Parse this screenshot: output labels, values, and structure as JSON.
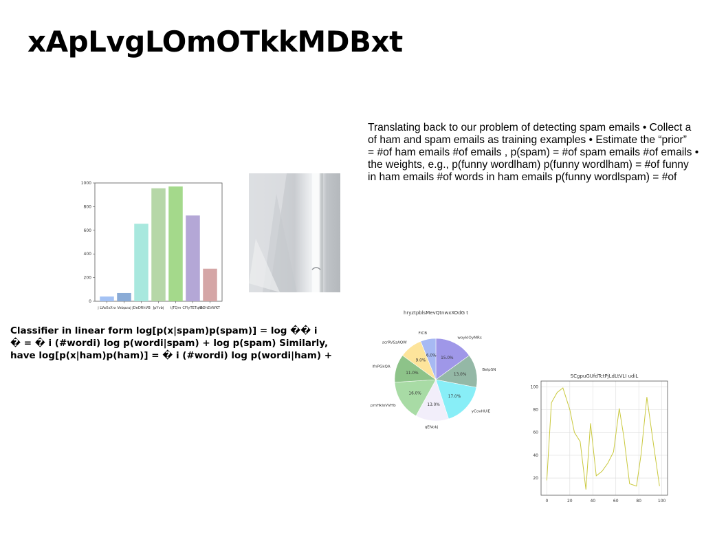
{
  "slide": {
    "title": "xApLvgLOmOTkkMDBxt",
    "paragraph_lines": [
      "Translating back to our problem of detecting spam emails • Collect a",
      "of ham and spam emails as training examples • Estimate the “prior”",
      "= #of ham emails #of emails , p(spam) = #of spam emails #of emails •",
      "the weights, e.g., p(funny wordlham) p(funny wordlham) = #of funny",
      "in ham emails #of words in ham emails p(funny wordlspam) = #of"
    ],
    "classifier_lines": [
      "Classifier in linear form log[p(x|spam)p(spam)] = log �� i",
      "� = � i (#wordi) log p(wordi|spam) + log p(spam) Similarly,",
      "have log[p(x|ham)p(ham)] = � i (#wordi) log p(wordi|ham) +"
    ]
  },
  "chart_data": [
    {
      "type": "bar",
      "categories": [
        "j LVaXsXrx",
        "Vebpzuj",
        "jDeDRhVB",
        "JpYvbj",
        "tjTQm",
        "CFlyTETqkh",
        "BDhEVWKT"
      ],
      "values": [
        40,
        70,
        655,
        955,
        970,
        725,
        275
      ],
      "colors": [
        "#a4c2f4",
        "#8aabd6",
        "#a8e8de",
        "#b6d7a8",
        "#a4d98b",
        "#b4a7d6",
        "#d5a6a6"
      ],
      "ylim": [
        0,
        1000
      ],
      "yticks": [
        0,
        200,
        400,
        600,
        800,
        1000
      ]
    },
    {
      "type": "pie",
      "title": "hryztpblsMevQtnwxXOdG t",
      "slices": [
        {
          "label": "woyklOyMRs",
          "value": 15.0,
          "color": "#9f97e8"
        },
        {
          "label": "BelpSN",
          "value": 13.0,
          "color": "#94b8a6"
        },
        {
          "label": "yCovHUiE",
          "value": 17.0,
          "color": "#88eef7"
        },
        {
          "label": "qENokj",
          "value": 13.0,
          "color": "#f2eefa"
        },
        {
          "label": "pmHkloVVHb",
          "value": 16.0,
          "color": "#a8dba5"
        },
        {
          "label": "lfnPGkQA",
          "value": 11.0,
          "color": "#8dc389"
        },
        {
          "label": "scrRVSzAQW",
          "value": 9.0,
          "color": "#fde49b"
        },
        {
          "label": "FICB",
          "value": 6.0,
          "color": "#a7b9f3"
        }
      ]
    },
    {
      "type": "line",
      "title": "SCgpuGUfdTctPjLdLtVLI udiL",
      "x": [
        0,
        4,
        9,
        14,
        20,
        24,
        29,
        34,
        38,
        43,
        48,
        53,
        58,
        63,
        67,
        72,
        78,
        82,
        87,
        92,
        98
      ],
      "y": [
        18,
        86,
        95,
        99,
        80,
        60,
        52,
        10,
        68,
        22,
        26,
        33,
        43,
        81,
        56,
        15,
        13,
        41,
        91,
        55,
        13
      ],
      "xlim": [
        -5,
        105
      ],
      "ylim": [
        5,
        105
      ],
      "xticks": [
        0,
        20,
        40,
        60,
        80,
        100
      ],
      "yticks": [
        20,
        40,
        60,
        80,
        100
      ],
      "color": "#c9c83c",
      "grid": true
    }
  ]
}
